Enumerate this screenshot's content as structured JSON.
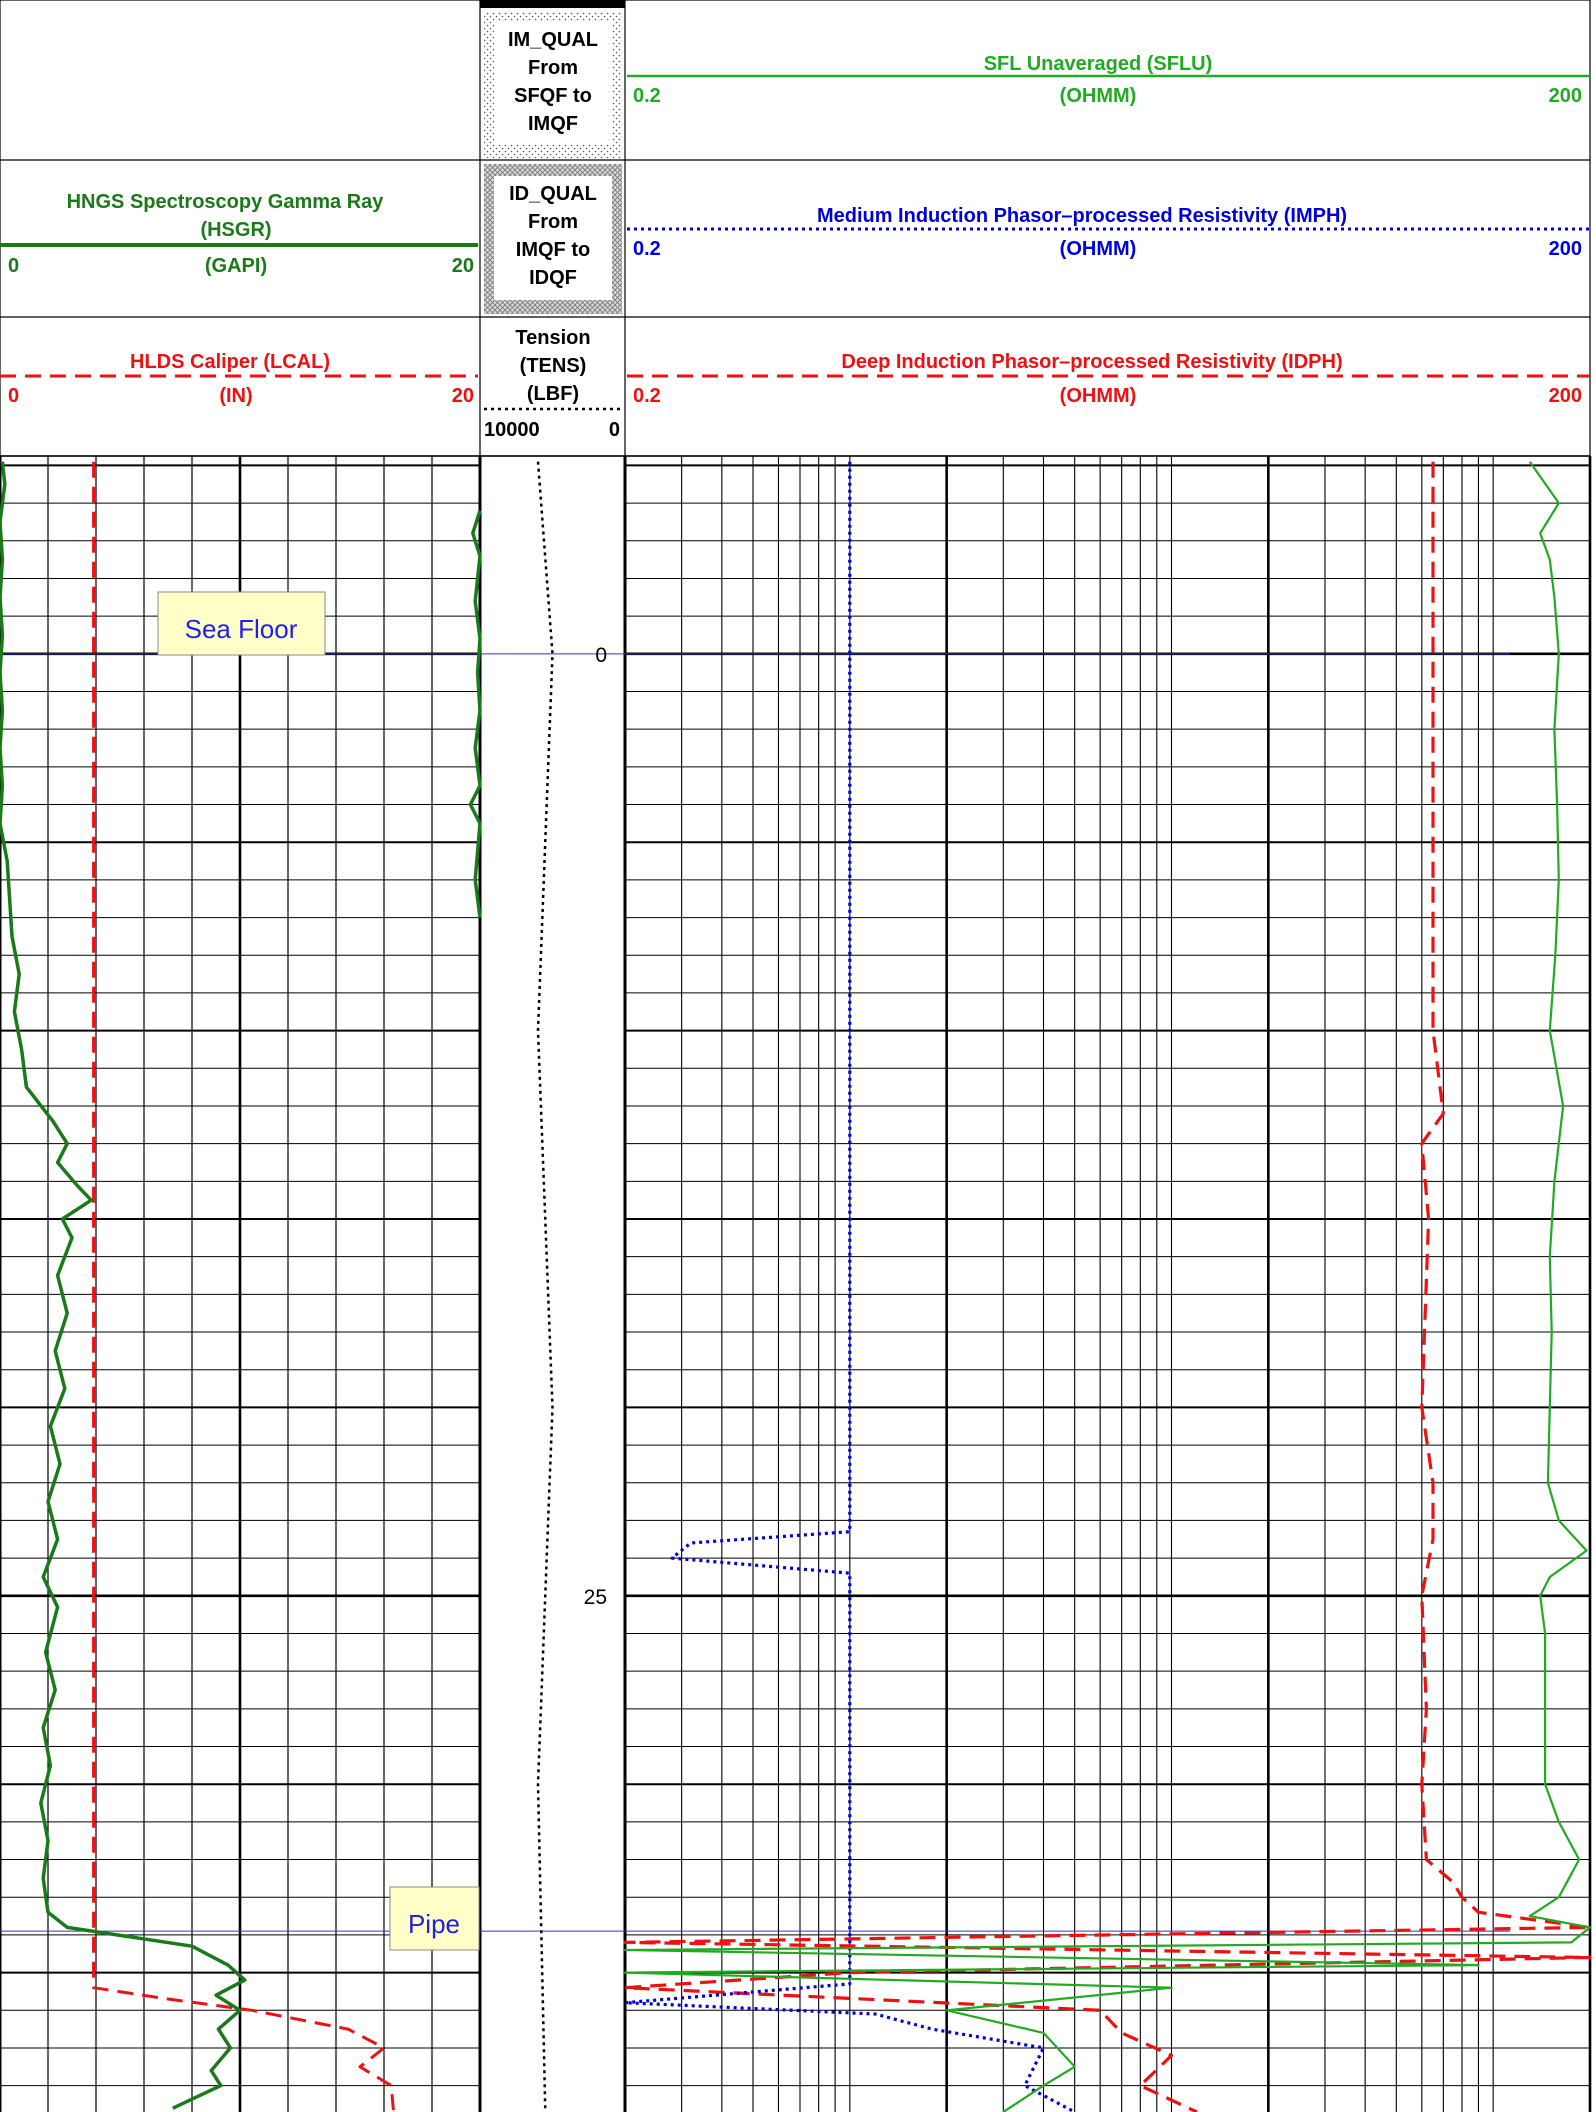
{
  "colors": {
    "green_gr": "#1a7a1a",
    "green_sflu": "#22aa22",
    "blue": "#0000dd",
    "red": "#ee1111",
    "grid": "#000000",
    "annot_bg": "#ffffc8",
    "annot_text": "#2020ee",
    "marker_line": "#3333cc"
  },
  "headers": {
    "im_qual": {
      "lines": [
        "IM_QUAL",
        "From",
        "SFQF to",
        "IMQF"
      ]
    },
    "id_qual": {
      "lines": [
        "ID_QUAL",
        "From",
        "IMQF to",
        "IDQF"
      ]
    },
    "sflu": {
      "title": "SFL Unaveraged (SFLU)",
      "unit": "(OHMM)",
      "min": "0.2",
      "max": "200"
    },
    "hsgr": {
      "title": "HNGS Spectroscopy Gamma Ray",
      "mnemonic": "(HSGR)",
      "unit": "(GAPI)",
      "min": "0",
      "max": "20"
    },
    "imph": {
      "title": "Medium Induction Phasor–processed Resistivity (IMPH)",
      "unit": "(OHMM)",
      "min": "0.2",
      "max": "200"
    },
    "lcal": {
      "title": "HLDS Caliper (LCAL)",
      "unit": "(IN)",
      "min": "0",
      "max": "20"
    },
    "tens": {
      "lines": [
        "Tension",
        "(TENS)",
        "(LBF)"
      ],
      "min": "10000",
      "max": "0"
    },
    "idph": {
      "title": "Deep Induction Phasor–processed Resistivity (IDPH)",
      "unit": "(OHMM)",
      "min": "0.2",
      "max": "200"
    }
  },
  "annotations": {
    "sea_floor": "Sea Floor",
    "pipe": "Pipe"
  },
  "chart_data": {
    "type": "line",
    "depth_ticks": [
      {
        "label": "0",
        "depth": 0
      },
      {
        "label": "25",
        "depth": 25
      }
    ],
    "depth_range": [
      -5.25,
      38.7
    ],
    "events": [
      {
        "name": "Sea Floor",
        "depth": 0
      },
      {
        "name": "Pipe",
        "depth": 33.9
      }
    ],
    "track1": {
      "scale": [
        0,
        20
      ],
      "series": [
        {
          "name": "HSGR",
          "style": "solid",
          "points": [
            [
              -5.1,
              0.1
            ],
            [
              -4.5,
              0.2
            ],
            [
              -3.5,
              0.0
            ],
            [
              -2.5,
              0.1
            ],
            [
              -1.5,
              0.0
            ],
            [
              -0.5,
              0.1
            ],
            [
              0.5,
              0.0
            ],
            [
              1.5,
              0.1
            ],
            [
              2.5,
              0.0
            ],
            [
              3.5,
              0.1
            ],
            [
              4.5,
              0.0
            ],
            [
              5.5,
              0.3
            ],
            [
              6.5,
              0.4
            ],
            [
              7.5,
              0.5
            ],
            [
              8.5,
              0.8
            ],
            [
              9.5,
              0.6
            ],
            [
              10.5,
              0.9
            ],
            [
              11.5,
              1.1
            ],
            [
              12.4,
              2.2
            ],
            [
              13.0,
              2.8
            ],
            [
              13.5,
              2.4
            ],
            [
              14.1,
              3.2
            ],
            [
              14.5,
              3.8
            ],
            [
              15.0,
              2.6
            ],
            [
              15.5,
              3.0
            ],
            [
              16.5,
              2.4
            ],
            [
              17.5,
              2.8
            ],
            [
              18.5,
              2.3
            ],
            [
              19.5,
              2.7
            ],
            [
              20.5,
              2.1
            ],
            [
              21.5,
              2.5
            ],
            [
              22.5,
              2.0
            ],
            [
              23.5,
              2.4
            ],
            [
              24.5,
              1.8
            ],
            [
              25.3,
              2.4
            ],
            [
              26.5,
              1.9
            ],
            [
              27.5,
              2.3
            ],
            [
              28.5,
              1.8
            ],
            [
              29.5,
              2.1
            ],
            [
              30.5,
              1.7
            ],
            [
              31.5,
              2.0
            ],
            [
              32.5,
              1.8
            ],
            [
              33.4,
              2.0
            ],
            [
              33.8,
              2.8
            ],
            [
              34.3,
              8.0
            ],
            [
              34.8,
              9.5
            ],
            [
              35.2,
              10.2
            ],
            [
              35.6,
              9.0
            ],
            [
              36.0,
              10.0
            ],
            [
              36.5,
              9.1
            ],
            [
              37.0,
              9.6
            ],
            [
              37.6,
              8.8
            ],
            [
              38.0,
              9.2
            ],
            [
              38.6,
              7.2
            ]
          ]
        },
        {
          "name": "LCAL",
          "style": "dash",
          "points": [
            [
              -5.1,
              3.9
            ],
            [
              10.0,
              3.9
            ],
            [
              20.0,
              3.9
            ],
            [
              30.0,
              3.9
            ],
            [
              35.4,
              3.9
            ],
            [
              35.7,
              7.0
            ],
            [
              36.0,
              10.5
            ],
            [
              36.5,
              14.5
            ],
            [
              37.0,
              16.0
            ],
            [
              37.5,
              15.0
            ],
            [
              38.0,
              16.3
            ],
            [
              38.7,
              16.4
            ]
          ]
        },
        {
          "name": "HSGR high-side wrap",
          "style": "solid",
          "points": [
            [
              -3.8,
              20.0
            ],
            [
              -3.2,
              19.7
            ],
            [
              -2.6,
              20.0
            ],
            [
              -1.4,
              19.8
            ],
            [
              -0.4,
              20.0
            ],
            [
              0.5,
              19.9
            ],
            [
              1.5,
              20.0
            ],
            [
              2.5,
              19.8
            ],
            [
              3.5,
              20.0
            ],
            [
              4.0,
              19.6
            ],
            [
              4.5,
              20.0
            ],
            [
              6.0,
              19.8
            ],
            [
              7.0,
              20.0
            ]
          ]
        }
      ]
    },
    "depth_track": {
      "scale": [
        10000,
        0
      ],
      "series": [
        {
          "name": "TENS",
          "style": "dot",
          "points": [
            [
              -5.1,
              0.4
            ],
            [
              0,
              0.5
            ],
            [
              10,
              0.4
            ],
            [
              20,
              0.5
            ],
            [
              30,
              0.4
            ],
            [
              38.7,
              0.45
            ]
          ]
        }
      ]
    },
    "resistivity_track": {
      "scale": [
        0.2,
        200
      ],
      "log": true,
      "series": [
        {
          "name": "SFLU",
          "style": "solid",
          "points": [
            [
              -5.1,
              130
            ],
            [
              -4.0,
              160
            ],
            [
              -3.2,
              140
            ],
            [
              -2.5,
              150
            ],
            [
              -1.5,
              155
            ],
            [
              0,
              160
            ],
            [
              2,
              155
            ],
            [
              4,
              158
            ],
            [
              6,
              160
            ],
            [
              8,
              156
            ],
            [
              10,
              150
            ],
            [
              12,
              165
            ],
            [
              14,
              155
            ],
            [
              16,
              150
            ],
            [
              18,
              152
            ],
            [
              20,
              150
            ],
            [
              22,
              148
            ],
            [
              23,
              160
            ],
            [
              23.8,
              195
            ],
            [
              24.5,
              150
            ],
            [
              25,
              140
            ],
            [
              26,
              145
            ],
            [
              28,
              145
            ],
            [
              30,
              145
            ],
            [
              31,
              160
            ],
            [
              32,
              185
            ],
            [
              33,
              160
            ],
            [
              33.5,
              130
            ],
            [
              33.8,
              200
            ],
            [
              34.2,
              175
            ],
            [
              34.4,
              0.2
            ],
            [
              34.8,
              90
            ],
            [
              35.0,
              0.2
            ],
            [
              35.4,
              10
            ],
            [
              36.0,
              2
            ],
            [
              36.6,
              4
            ],
            [
              37.5,
              5
            ],
            [
              38,
              4
            ],
            [
              38.7,
              3
            ]
          ]
        },
        {
          "name": "IMPH",
          "style": "dot",
          "points": [
            [
              -5.1,
              1.0
            ],
            [
              10,
              1.0
            ],
            [
              20,
              1.0
            ],
            [
              23.3,
              1.0
            ],
            [
              23.6,
              0.32
            ],
            [
              24.0,
              0.28
            ],
            [
              24.4,
              1.0
            ],
            [
              30,
              1.0
            ],
            [
              35.3,
              1.0
            ],
            [
              35.8,
              0.2
            ],
            [
              36.1,
              1.2
            ],
            [
              36.5,
              1.8
            ],
            [
              37,
              4
            ],
            [
              38,
              3.5
            ],
            [
              38.7,
              5
            ]
          ]
        },
        {
          "name": "IDPH",
          "style": "dash",
          "points": [
            [
              -5.1,
              65
            ],
            [
              10,
              65
            ],
            [
              12.2,
              70
            ],
            [
              13,
              60
            ],
            [
              15,
              63
            ],
            [
              20,
              60
            ],
            [
              22,
              65
            ],
            [
              23.5,
              65
            ],
            [
              25,
              60
            ],
            [
              28,
              62
            ],
            [
              30,
              60
            ],
            [
              32,
              62
            ],
            [
              32.6,
              75
            ],
            [
              33,
              80
            ],
            [
              33.4,
              90
            ],
            [
              33.8,
              200
            ],
            [
              34.2,
              0.2
            ],
            [
              34.6,
              200
            ],
            [
              35.0,
              1.0
            ],
            [
              35.4,
              0.2
            ],
            [
              36.0,
              6
            ],
            [
              36.6,
              7
            ],
            [
              37.2,
              10
            ],
            [
              38,
              8
            ],
            [
              38.7,
              12
            ]
          ]
        }
      ]
    }
  }
}
